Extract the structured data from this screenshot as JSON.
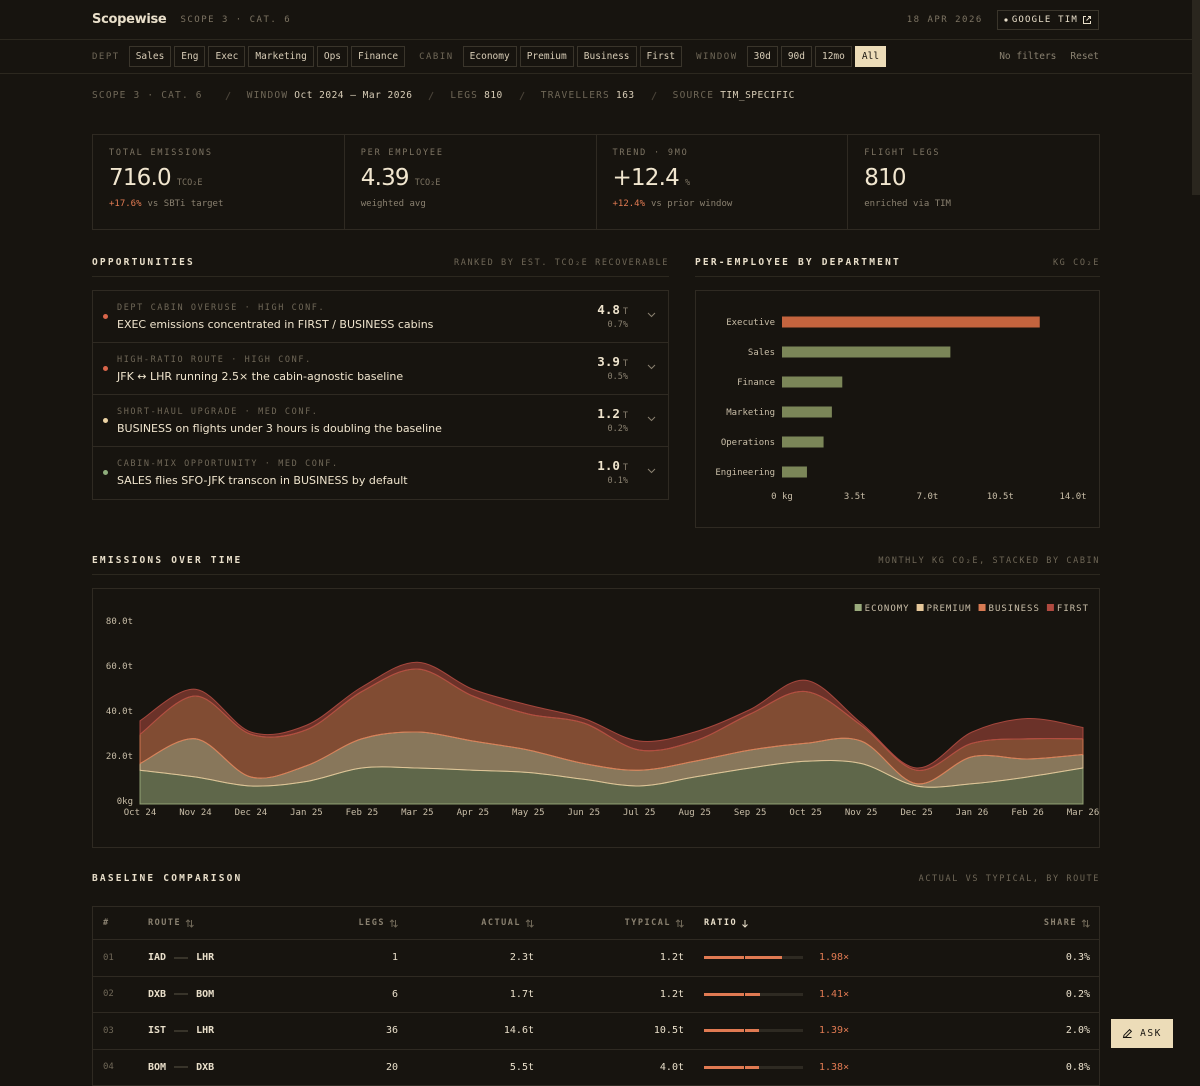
{
  "header": {
    "brand": "Scopewise",
    "crumb": "SCOPE 3 · CAT. 6",
    "date": "18 APR 2026",
    "account": "GOOGLE TIM"
  },
  "filters": {
    "groups": [
      {
        "label": "DEPT",
        "options": [
          "Sales",
          "Eng",
          "Exec",
          "Marketing",
          "Ops",
          "Finance"
        ]
      },
      {
        "label": "CABIN",
        "options": [
          "Economy",
          "Premium",
          "Business",
          "First"
        ]
      },
      {
        "label": "WINDOW",
        "options": [
          "30d",
          "90d",
          "12mo",
          "All"
        ],
        "active": 3
      }
    ],
    "status": "No filters",
    "reset": "Reset"
  },
  "meta": {
    "scope": "SCOPE 3 · CAT. 6",
    "items": [
      {
        "label": "WINDOW",
        "value": "Oct 2024 – Mar 2026"
      },
      {
        "label": "LEGS",
        "value": "810"
      },
      {
        "label": "TRAVELLERS",
        "value": "163"
      },
      {
        "label": "SOURCE",
        "value": "TIM_SPECIFIC"
      }
    ]
  },
  "kpis": [
    {
      "label": "TOTAL EMISSIONS",
      "value": "716.0",
      "unit": "TCO₂E",
      "delta": "+17.6%",
      "note": "vs SBTi target"
    },
    {
      "label": "PER EMPLOYEE",
      "value": "4.39",
      "unit": "TCO₂E",
      "note": "weighted avg"
    },
    {
      "label": "TREND · 9MO",
      "value": "+12.4",
      "unit": "%",
      "delta": "+12.4%",
      "note": "vs prior window"
    },
    {
      "label": "FLIGHT LEGS",
      "value": "810",
      "note": "enriched via TIM"
    }
  ],
  "opportunities": {
    "title": "OPPORTUNITIES",
    "subtitle": "RANKED BY EST. TCO₂E RECOVERABLE",
    "items": [
      {
        "tag": "DEPT CABIN OVERUSE · HIGH CONF.",
        "title": "EXEC emissions concentrated in FIRST / BUSINESS cabins",
        "value": "4.8",
        "unit": "T",
        "share": "0.7%",
        "color": "#d9654a"
      },
      {
        "tag": "HIGH-RATIO ROUTE · HIGH CONF.",
        "title": "JFK ↔ LHR running 2.5× the cabin-agnostic baseline",
        "value": "3.9",
        "unit": "T",
        "share": "0.5%",
        "color": "#d9654a"
      },
      {
        "tag": "SHORT-HAUL UPGRADE · MED CONF.",
        "title": "BUSINESS on flights under 3 hours is doubling the baseline",
        "value": "1.2",
        "unit": "T",
        "share": "0.2%",
        "color": "#ecd3a4"
      },
      {
        "tag": "CABIN-MIX OPPORTUNITY · MED CONF.",
        "title": "SALES flies SFO-JFK transcon in BUSINESS by default",
        "value": "1.0",
        "unit": "T",
        "share": "0.1%",
        "color": "#8fae7c"
      }
    ]
  },
  "chart_data": [
    {
      "type": "bar",
      "orientation": "horizontal",
      "title": "PER-EMPLOYEE BY DEPARTMENT",
      "subtitle": "KG CO₂E",
      "categories": [
        "Executive",
        "Sales",
        "Finance",
        "Marketing",
        "Operations",
        "Engineering"
      ],
      "values": [
        12.4,
        8.1,
        2.9,
        2.4,
        2.0,
        1.2
      ],
      "colors": [
        "#c4643e",
        "#7b8658",
        "#7b8658",
        "#7b8658",
        "#7b8658",
        "#7b8658"
      ],
      "xlim": [
        0,
        14
      ],
      "xticks": [
        {
          "value": 0,
          "label": "0 kg"
        },
        {
          "value": 3.5,
          "label": "3.5t"
        },
        {
          "value": 7,
          "label": "7.0t"
        },
        {
          "value": 10.5,
          "label": "10.5t"
        },
        {
          "value": 14,
          "label": "14.0t"
        }
      ]
    },
    {
      "type": "area",
      "stacked": true,
      "title": "EMISSIONS OVER TIME",
      "subtitle": "MONTHLY KG CO₂E, STACKED BY CABIN",
      "categories": [
        "Oct 24",
        "Nov 24",
        "Dec 24",
        "Jan 25",
        "Feb 25",
        "Mar 25",
        "Apr 25",
        "May 25",
        "Jun 25",
        "Jul 25",
        "Aug 25",
        "Sep 25",
        "Oct 25",
        "Nov 25",
        "Dec 25",
        "Jan 26",
        "Feb 26",
        "Mar 26"
      ],
      "series": [
        {
          "name": "ECONOMY",
          "color": "#9aab7c",
          "values": [
            15,
            12,
            8,
            10,
            16,
            16,
            15,
            14,
            11,
            8,
            12,
            16,
            19,
            18,
            8,
            9,
            12,
            16
          ]
        },
        {
          "name": "PREMIUM",
          "color": "#e6c89a",
          "values": [
            3,
            17,
            4,
            7,
            13,
            16,
            13,
            10,
            7,
            7,
            7,
            8,
            8,
            10,
            1,
            12,
            8,
            6
          ]
        },
        {
          "name": "BUSINESS",
          "color": "#d87a52",
          "values": [
            13,
            19,
            19,
            16,
            21,
            28,
            20,
            16,
            18,
            9,
            9,
            16,
            23,
            7,
            6,
            6,
            9,
            7
          ]
        },
        {
          "name": "FIRST",
          "color": "#b04a40",
          "values": [
            6,
            3,
            1,
            2,
            2,
            3,
            3,
            4,
            2,
            4,
            4,
            2,
            5,
            1,
            1,
            5,
            9,
            5
          ]
        }
      ],
      "ylim": [
        0,
        80
      ],
      "yticks": [
        {
          "value": 0,
          "label": "0kg"
        },
        {
          "value": 20,
          "label": "20.0t"
        },
        {
          "value": 40,
          "label": "40.0t"
        },
        {
          "value": 60,
          "label": "60.0t"
        },
        {
          "value": 80,
          "label": "80.0t"
        }
      ],
      "legend": "top-right"
    }
  ],
  "baseline": {
    "title": "BASELINE COMPARISON",
    "subtitle": "ACTUAL VS TYPICAL, BY ROUTE",
    "columns": [
      "#",
      "ROUTE",
      "LEGS",
      "ACTUAL",
      "TYPICAL",
      "RATIO",
      "SHARE"
    ],
    "ratio_lim": [
      0,
      2.5
    ],
    "ratio_baseline": 1,
    "rows": [
      {
        "n": "01",
        "from": "IAD",
        "to": "LHR",
        "legs": "1",
        "actual": "2.3t",
        "typical": "1.2t",
        "ratio": {
          "value": 1.98,
          "label": "1.98×"
        },
        "share": "0.3%"
      },
      {
        "n": "02",
        "from": "DXB",
        "to": "BOM",
        "legs": "6",
        "actual": "1.7t",
        "typical": "1.2t",
        "ratio": {
          "value": 1.41,
          "label": "1.41×"
        },
        "share": "0.2%"
      },
      {
        "n": "03",
        "from": "IST",
        "to": "LHR",
        "legs": "36",
        "actual": "14.6t",
        "typical": "10.5t",
        "ratio": {
          "value": 1.39,
          "label": "1.39×"
        },
        "share": "2.0%"
      },
      {
        "n": "04",
        "from": "BOM",
        "to": "DXB",
        "legs": "20",
        "actual": "5.5t",
        "typical": "4.0t",
        "ratio": {
          "value": 1.38,
          "label": "1.38×"
        },
        "share": "0.8%"
      }
    ]
  },
  "ask": "ASK"
}
